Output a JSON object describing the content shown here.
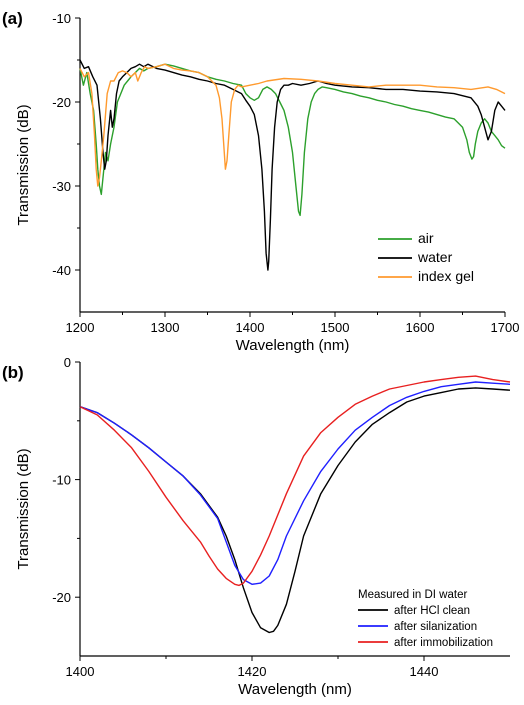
{
  "chart_data": [
    {
      "panel": "(a)",
      "type": "line",
      "xlabel": "Wavelength (nm)",
      "ylabel": "Transmission (dB)",
      "xlim": [
        1200,
        1700
      ],
      "ylim": [
        -45,
        -10
      ],
      "xticks": [
        1200,
        1300,
        1400,
        1500,
        1600,
        1700
      ],
      "yticks": [
        -10,
        -20,
        -30,
        -40
      ],
      "grid": false,
      "legend_position": "bottom-right",
      "series": [
        {
          "name": "air",
          "color": "#2ca02c",
          "x": [
            1200,
            1204,
            1208,
            1212,
            1216,
            1219,
            1221,
            1223,
            1225,
            1227,
            1230,
            1233,
            1236,
            1240,
            1244,
            1248,
            1252,
            1256,
            1260,
            1265,
            1270,
            1275,
            1280,
            1290,
            1300,
            1310,
            1320,
            1330,
            1340,
            1350,
            1360,
            1370,
            1380,
            1390,
            1395,
            1400,
            1405,
            1410,
            1415,
            1420,
            1425,
            1430,
            1435,
            1440,
            1445,
            1450,
            1454,
            1457,
            1459,
            1461,
            1464,
            1468,
            1472,
            1476,
            1480,
            1485,
            1490,
            1500,
            1510,
            1520,
            1530,
            1540,
            1550,
            1560,
            1570,
            1580,
            1590,
            1600,
            1610,
            1620,
            1630,
            1640,
            1645,
            1650,
            1655,
            1658,
            1661,
            1663,
            1665,
            1668,
            1672,
            1676,
            1680,
            1684,
            1688,
            1692,
            1696,
            1700
          ],
          "y": [
            -16,
            -18,
            -16.5,
            -19,
            -21,
            -25,
            -28,
            -30,
            -31,
            -29,
            -26,
            -27,
            -25,
            -23,
            -20,
            -19,
            -18,
            -17.5,
            -17,
            -16.5,
            -16,
            -16.3,
            -16,
            -15.8,
            -15.5,
            -15.7,
            -16,
            -16.3,
            -16.5,
            -17,
            -17.3,
            -17.5,
            -17.8,
            -18,
            -19,
            -19.5,
            -19.8,
            -19.5,
            -18.5,
            -18.2,
            -18.5,
            -19,
            -20,
            -21,
            -23,
            -26,
            -30,
            -33,
            -33.5,
            -31,
            -26,
            -22,
            -20,
            -19,
            -18.5,
            -18.2,
            -18.3,
            -18.5,
            -18.8,
            -19,
            -19.3,
            -19.5,
            -19.8,
            -20,
            -20.3,
            -20.5,
            -20.8,
            -21,
            -21.2,
            -21.5,
            -21.8,
            -22,
            -22.5,
            -23,
            -24.5,
            -26,
            -26.8,
            -26.5,
            -25,
            -23.5,
            -22.5,
            -22,
            -22.5,
            -23.5,
            -24,
            -24.5,
            -25.2,
            -25.5
          ]
        },
        {
          "name": "water",
          "color": "#000000",
          "x": [
            1200,
            1205,
            1210,
            1215,
            1220,
            1224,
            1227,
            1229,
            1231,
            1233,
            1236,
            1238,
            1240,
            1243,
            1246,
            1250,
            1255,
            1260,
            1265,
            1270,
            1275,
            1280,
            1290,
            1300,
            1310,
            1320,
            1330,
            1340,
            1350,
            1360,
            1370,
            1380,
            1390,
            1395,
            1400,
            1405,
            1410,
            1414,
            1417,
            1419,
            1421,
            1422,
            1424,
            1426,
            1429,
            1432,
            1436,
            1440,
            1445,
            1450,
            1460,
            1470,
            1480,
            1490,
            1500,
            1520,
            1540,
            1560,
            1580,
            1600,
            1620,
            1640,
            1660,
            1668,
            1672,
            1676,
            1680,
            1684,
            1688,
            1692,
            1696,
            1700
          ],
          "y": [
            -15,
            -16,
            -15.8,
            -17,
            -18,
            -22,
            -26,
            -28,
            -27,
            -24,
            -21,
            -23,
            -22,
            -19,
            -17.5,
            -17,
            -16.5,
            -16,
            -15.8,
            -15.5,
            -15.8,
            -15.5,
            -16,
            -16.2,
            -16.5,
            -16.8,
            -17,
            -17.3,
            -17.5,
            -17.8,
            -18,
            -18.5,
            -19,
            -19.8,
            -20.5,
            -21.5,
            -24,
            -28,
            -33,
            -38,
            -40,
            -39,
            -34,
            -28,
            -23,
            -20,
            -18.5,
            -18,
            -18,
            -17.8,
            -18,
            -17.8,
            -17.5,
            -17.8,
            -18,
            -18.2,
            -18.3,
            -18.5,
            -18.5,
            -18.7,
            -18.8,
            -19,
            -19.5,
            -20.5,
            -21.5,
            -23,
            -24.5,
            -23.5,
            -21,
            -20,
            -20.5,
            -21
          ]
        },
        {
          "name": "index gel",
          "color": "#ff9a2e",
          "x": [
            1200,
            1205,
            1210,
            1214,
            1217,
            1219,
            1221,
            1223,
            1225,
            1228,
            1232,
            1236,
            1240,
            1245,
            1250,
            1255,
            1260,
            1265,
            1268,
            1272,
            1276,
            1280,
            1290,
            1300,
            1310,
            1320,
            1330,
            1340,
            1350,
            1355,
            1360,
            1364,
            1367,
            1369,
            1371,
            1373,
            1375,
            1378,
            1382,
            1386,
            1390,
            1400,
            1410,
            1420,
            1440,
            1460,
            1480,
            1500,
            1520,
            1540,
            1560,
            1580,
            1600,
            1620,
            1640,
            1660,
            1680,
            1690,
            1700
          ],
          "y": [
            -16,
            -17,
            -16.5,
            -19,
            -24,
            -28,
            -30,
            -29,
            -27,
            -24,
            -19,
            -17.5,
            -17.5,
            -16.5,
            -16.3,
            -16.5,
            -17,
            -16.5,
            -17.5,
            -16.5,
            -15.8,
            -16,
            -15.8,
            -15.5,
            -16,
            -16.2,
            -16.3,
            -16.5,
            -17,
            -17.5,
            -18,
            -19.5,
            -22,
            -25,
            -28,
            -27,
            -24,
            -20,
            -18.5,
            -18,
            -18.2,
            -18,
            -17.8,
            -17.5,
            -17.2,
            -17.3,
            -17.5,
            -17.8,
            -18,
            -18.2,
            -18,
            -18,
            -18,
            -18.2,
            -18.3,
            -18.5,
            -18.2,
            -18.5,
            -19
          ]
        }
      ]
    },
    {
      "panel": "(b)",
      "type": "line",
      "xlabel": "Wavelength (nm)",
      "ylabel": "Transmission (dB)",
      "xlim": [
        1400,
        1450
      ],
      "ylim": [
        -25,
        0
      ],
      "xticks": [
        1400,
        1420,
        1440
      ],
      "yticks": [
        0,
        -10,
        -20
      ],
      "grid": false,
      "legend_position": "bottom-right",
      "legend_title": "Measured in DI water",
      "series": [
        {
          "name": "after HCl clean",
          "color": "#000000",
          "x": [
            1400,
            1402,
            1404,
            1406,
            1408,
            1410,
            1412,
            1414,
            1416,
            1417,
            1418,
            1419,
            1420,
            1421,
            1422,
            1422.5,
            1423,
            1424,
            1425,
            1426,
            1428,
            1430,
            1432,
            1434,
            1436,
            1438,
            1440,
            1442,
            1444,
            1446,
            1448,
            1450
          ],
          "y": [
            -3.8,
            -4.3,
            -5.2,
            -6.2,
            -7.3,
            -8.5,
            -9.7,
            -11.2,
            -13.2,
            -14.8,
            -16.8,
            -19.2,
            -21.3,
            -22.6,
            -23,
            -22.9,
            -22.4,
            -20.6,
            -17.8,
            -14.8,
            -11.2,
            -8.8,
            -6.8,
            -5.3,
            -4.3,
            -3.4,
            -2.9,
            -2.6,
            -2.3,
            -2.2,
            -2.3,
            -2.4
          ]
        },
        {
          "name": "after silanization",
          "color": "#1f1fff",
          "x": [
            1400,
            1402,
            1404,
            1406,
            1408,
            1410,
            1412,
            1414,
            1416,
            1417,
            1418,
            1419,
            1420,
            1421,
            1422,
            1423,
            1424,
            1426,
            1428,
            1430,
            1432,
            1434,
            1436,
            1438,
            1440,
            1442,
            1444,
            1446,
            1448,
            1450
          ],
          "y": [
            -3.8,
            -4.3,
            -5.2,
            -6.2,
            -7.3,
            -8.5,
            -9.7,
            -11.3,
            -13.3,
            -15.3,
            -17.3,
            -18.5,
            -18.9,
            -18.8,
            -18.2,
            -16.8,
            -14.8,
            -11.8,
            -9.3,
            -7.4,
            -5.8,
            -4.7,
            -3.7,
            -3,
            -2.5,
            -2.1,
            -1.9,
            -1.7,
            -1.8,
            -1.9
          ]
        },
        {
          "name": "after immobilization",
          "color": "#e82020",
          "x": [
            1400,
            1402,
            1404,
            1406,
            1408,
            1410,
            1412,
            1414,
            1415,
            1416,
            1417,
            1418,
            1418.5,
            1419,
            1420,
            1421,
            1422,
            1424,
            1426,
            1428,
            1430,
            1432,
            1434,
            1436,
            1438,
            1440,
            1442,
            1444,
            1446,
            1448,
            1450
          ],
          "y": [
            -3.8,
            -4.5,
            -5.8,
            -7.3,
            -9.3,
            -11.5,
            -13.5,
            -15.3,
            -16.5,
            -17.6,
            -18.4,
            -18.9,
            -19,
            -18.8,
            -17.8,
            -16.4,
            -14.8,
            -11.2,
            -8,
            -6,
            -4.7,
            -3.6,
            -2.9,
            -2.3,
            -2,
            -1.7,
            -1.5,
            -1.3,
            -1.2,
            -1.5,
            -1.7
          ]
        }
      ]
    }
  ]
}
